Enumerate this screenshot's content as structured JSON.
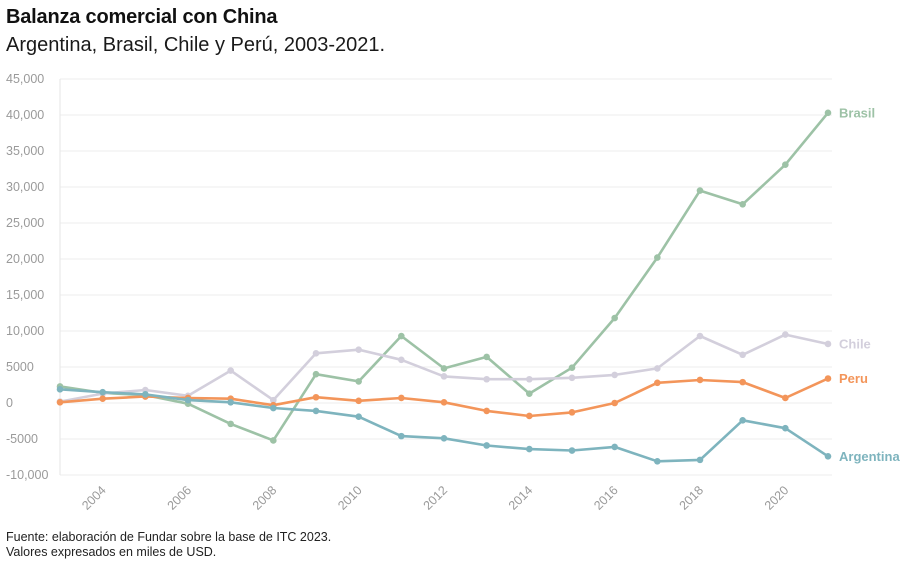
{
  "header": {
    "title": "Balanza comercial con China",
    "subtitle": "Argentina, Brasil, Chile y Perú, 2003-2021."
  },
  "footer": {
    "line1": "Fuente: elaboración de Fundar sobre la base de ITC 2023.",
    "line2": "Valores expresados en miles de USD."
  },
  "chart_data": {
    "type": "line",
    "title": "Balanza comercial con China",
    "subtitle": "Argentina, Brasil, Chile y Perú, 2003-2021.",
    "xlabel": "",
    "ylabel": "",
    "x": [
      2003,
      2004,
      2005,
      2006,
      2007,
      2008,
      2009,
      2010,
      2011,
      2012,
      2013,
      2014,
      2015,
      2016,
      2017,
      2018,
      2019,
      2020,
      2021
    ],
    "xticks": [
      "2004",
      "2006",
      "2008",
      "2010",
      "2012",
      "2014",
      "2016",
      "2018",
      "2020"
    ],
    "yticks": [
      "-10,000",
      "-5000",
      "0",
      "5000",
      "10,000",
      "15,000",
      "20,000",
      "25,000",
      "30,000",
      "35,000",
      "40,000",
      "45,000"
    ],
    "ylim": [
      -10000,
      45000
    ],
    "grid": true,
    "legend": "direct labels at line ends (right)",
    "series": [
      {
        "name": "Brasil",
        "color": "#9dc2a6",
        "values": [
          2300,
          1400,
          1100,
          -100,
          -2900,
          -5200,
          4000,
          3000,
          9300,
          4800,
          6400,
          1300,
          4900,
          11800,
          20200,
          29500,
          27600,
          33100,
          40300
        ]
      },
      {
        "name": "Chile",
        "color": "#d3cfdc",
        "values": [
          200,
          1300,
          1800,
          1000,
          4500,
          400,
          6900,
          7400,
          6000,
          3700,
          3300,
          3300,
          3500,
          3900,
          4800,
          9300,
          6700,
          9500,
          8200
        ]
      },
      {
        "name": "Peru",
        "color": "#f3955a",
        "values": [
          100,
          600,
          900,
          700,
          600,
          -300,
          800,
          300,
          700,
          100,
          -1100,
          -1800,
          -1300,
          0,
          2800,
          3200,
          2900,
          700,
          3400
        ]
      },
      {
        "name": "Argentina",
        "color": "#7eb4be",
        "values": [
          1900,
          1500,
          1200,
          400,
          100,
          -700,
          -1100,
          -1900,
          -4600,
          -4900,
          -5900,
          -6400,
          -6600,
          -6100,
          -8100,
          -7900,
          -2400,
          -3500,
          -7400
        ]
      }
    ]
  }
}
